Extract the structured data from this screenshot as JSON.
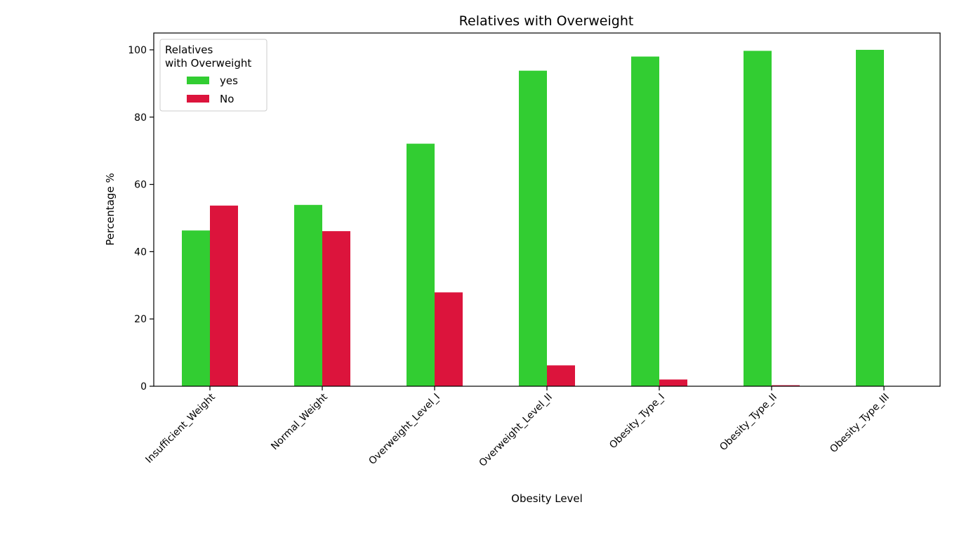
{
  "chart_data": {
    "type": "bar",
    "title": "Relatives with Overweight",
    "xlabel": "Obesity Level",
    "ylabel": "Percentage %",
    "categories": [
      "Insufficient_Weight",
      "Normal_Weight",
      "Overweight_Level_I",
      "Overweight_Level_II",
      "Obesity_Type_I",
      "Obesity_Type_II",
      "Obesity_Type_III"
    ],
    "series": [
      {
        "name": "yes",
        "color": "#32cd32",
        "values": [
          46.3,
          53.9,
          72.1,
          93.8,
          98.0,
          99.7,
          100.0
        ]
      },
      {
        "name": "No",
        "color": "#dc143c",
        "values": [
          53.7,
          46.1,
          27.9,
          6.2,
          2.0,
          0.3,
          0.0
        ]
      }
    ],
    "ylim": [
      0,
      105
    ],
    "yticks": [
      0,
      20,
      40,
      60,
      80,
      100
    ],
    "grid": false,
    "legend": {
      "title_lines": [
        "Relatives",
        "with Overweight"
      ],
      "placement": "top-left"
    }
  }
}
